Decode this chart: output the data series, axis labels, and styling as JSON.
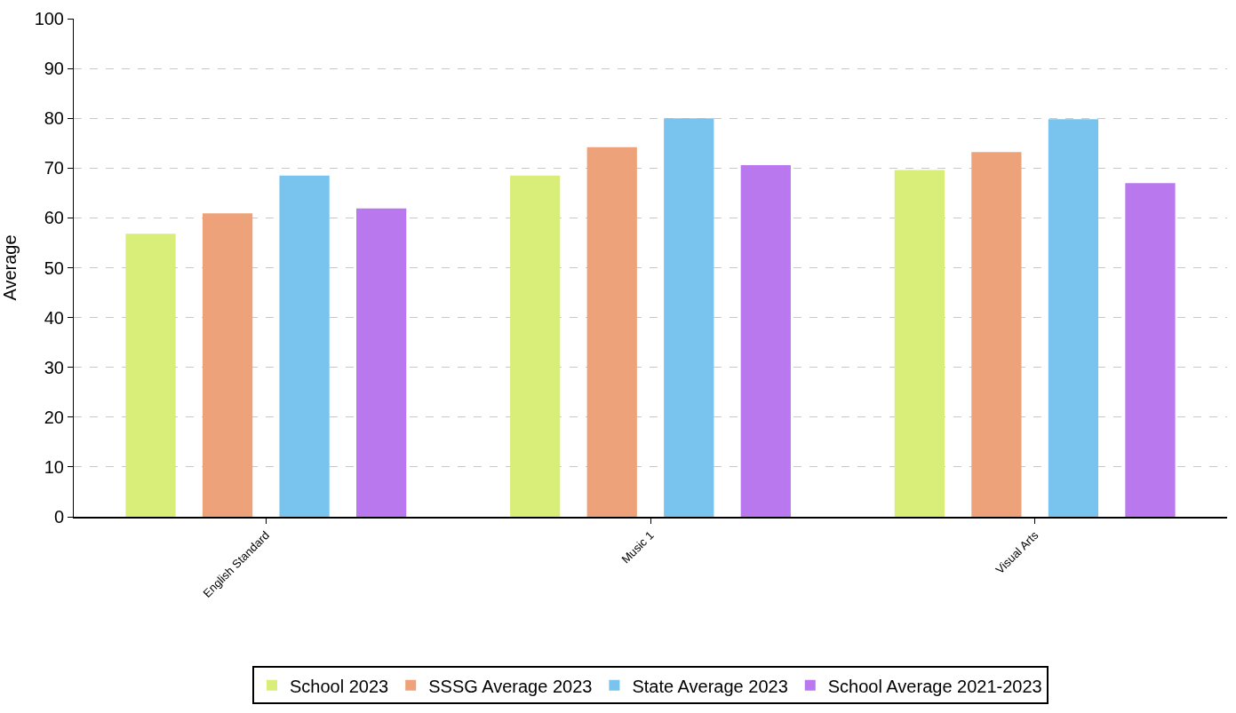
{
  "chart_data": {
    "type": "bar",
    "ylabel": "Average",
    "categories": [
      "English Standard",
      "Music 1",
      "Visual Arts"
    ],
    "series": [
      {
        "name": "School 2023",
        "color": "#d8ee78",
        "values": [
          56.8,
          68.5,
          69.6
        ]
      },
      {
        "name": "SSSG Average 2023",
        "color": "#eea27a",
        "values": [
          60.9,
          74.2,
          73.2
        ]
      },
      {
        "name": "State Average 2023",
        "color": "#78c4ee",
        "values": [
          68.5,
          80.0,
          79.8
        ]
      },
      {
        "name": "School Average 2021-2023",
        "color": "#ba78ee",
        "values": [
          61.9,
          70.6,
          67.0
        ]
      }
    ],
    "ylim": [
      0,
      100
    ],
    "yticks": [
      0,
      10,
      20,
      30,
      40,
      50,
      60,
      70,
      80,
      90,
      100
    ],
    "grid": "y",
    "legend": "bottom"
  }
}
